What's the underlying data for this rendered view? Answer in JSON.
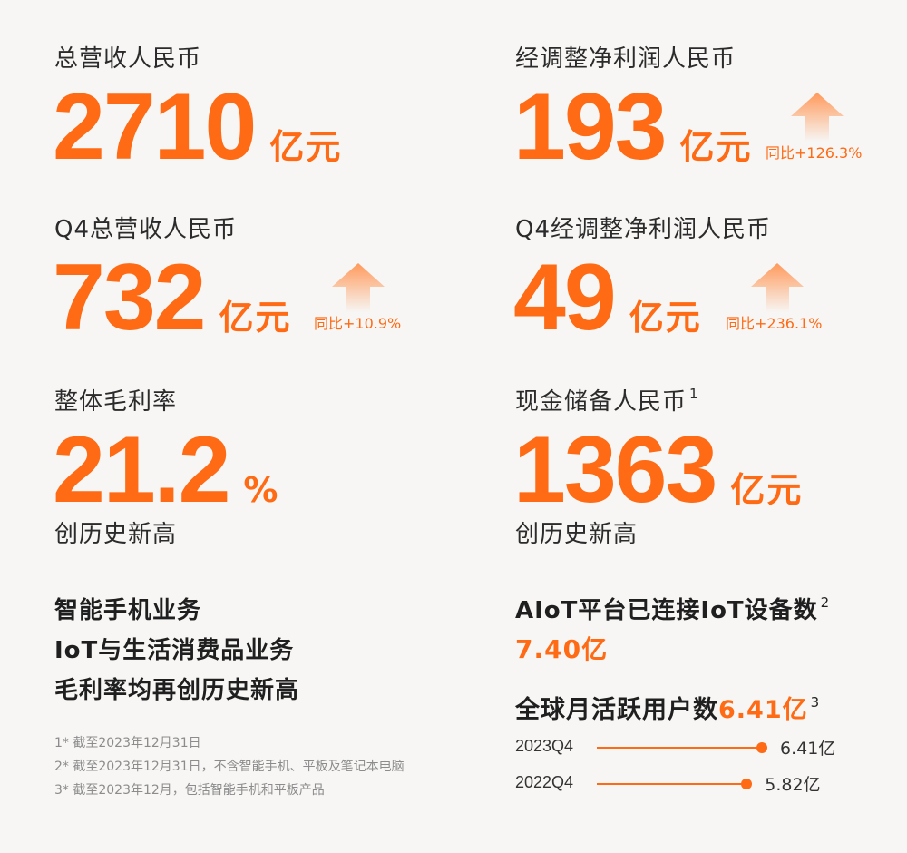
{
  "revenue": {
    "label": "总营收人民币",
    "value": "2710",
    "unit": "亿元"
  },
  "net_profit": {
    "label": "经调整净利润人民币",
    "value": "193",
    "unit": "亿元",
    "yoy": "同比+126.3%"
  },
  "q4_revenue": {
    "label": "Q4总营收人民币",
    "value": "732",
    "unit": "亿元",
    "yoy": "同比+10.9%"
  },
  "q4_net_profit": {
    "label": "Q4经调整净利润人民币",
    "value": "49",
    "unit": "亿元",
    "yoy": "同比+236.1%"
  },
  "gross_margin": {
    "label": "整体毛利率",
    "value": "21.2",
    "unit": "%",
    "note": "创历史新高"
  },
  "cash": {
    "label": "现金储备人民币",
    "sup": "1",
    "value": "1363",
    "unit": "亿元",
    "note": "创历史新高"
  },
  "business": {
    "line1": "智能手机业务",
    "line2": "IoT与生活消费品业务",
    "line3": "毛利率均再创历史新高"
  },
  "aiot": {
    "label": "AIoT平台已连接IoT设备数",
    "sup": "2",
    "value": "7.40亿"
  },
  "mau": {
    "label": "全球月活跃用户数",
    "value": "6.41亿",
    "sup": "3"
  },
  "mau_bars": [
    {
      "period": "2023Q4",
      "value": 6.41,
      "value_text": "6.41亿"
    },
    {
      "period": "2022Q4",
      "value": 5.82,
      "value_text": "5.82亿"
    }
  ],
  "footnotes": [
    "1*  截至2023年12月31日",
    "2*  截至2023年12月31日，不含智能手机、平板及笔记本电脑",
    "3*  截至2023年12月，包括智能手机和平板产品"
  ],
  "colors": {
    "accent": "#ff6a14",
    "background": "#f7f6f4",
    "text": "#222222",
    "muted": "#8c8c8c"
  },
  "icons": {
    "yoy": "up-arrow-icon"
  }
}
